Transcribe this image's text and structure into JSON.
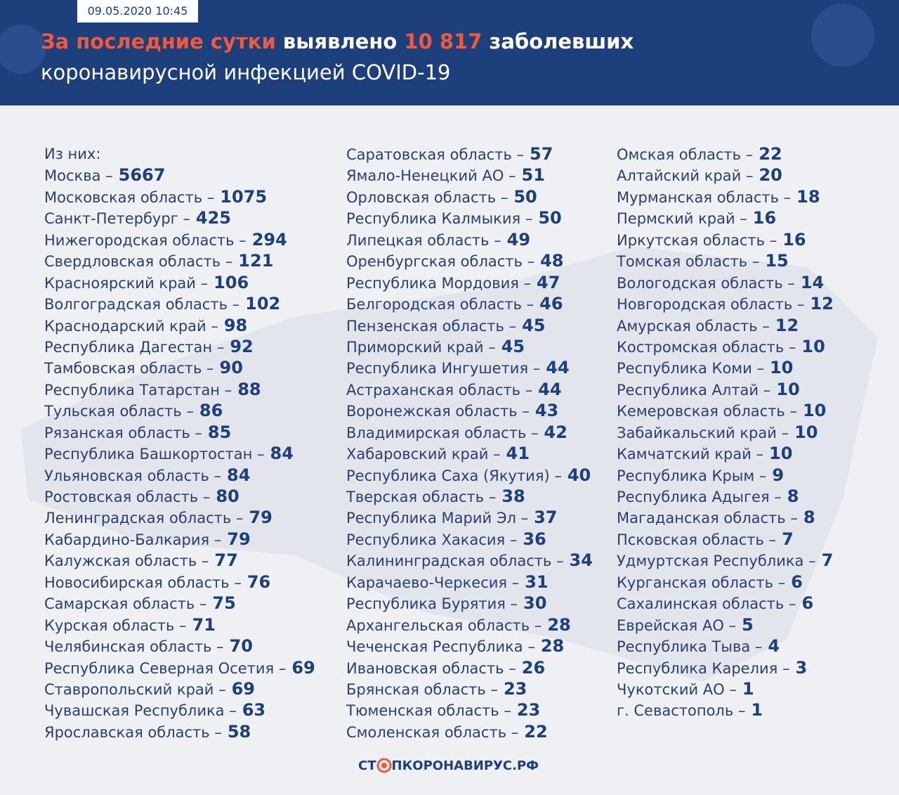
{
  "header": {
    "date": "09.05.2020 10:45",
    "title": {
      "highlight": "За последние сутки",
      "verb": "выявлено",
      "count": "10 817",
      "noun": "заболевших",
      "line2": "коронавирусной инфекцией COVID-19"
    }
  },
  "list_intro": "Из них:",
  "columns": [
    [
      {
        "name": "Москва –",
        "value": 5667
      },
      {
        "name": "Московская область –",
        "value": 1075
      },
      {
        "name": "Санкт-Петербург –",
        "value": 425
      },
      {
        "name": "Нижегородская область –",
        "value": 294
      },
      {
        "name": "Свердловская область –",
        "value": 121
      },
      {
        "name": "Красноярский край –",
        "value": 106
      },
      {
        "name": "Волгоградская область –",
        "value": 102
      },
      {
        "name": "Краснодарский край –",
        "value": 98
      },
      {
        "name": "Республика Дагестан –",
        "value": 92
      },
      {
        "name": "Тамбовская область –",
        "value": 90
      },
      {
        "name": "Республика Татарстан –",
        "value": 88
      },
      {
        "name": "Тульская область –",
        "value": 86
      },
      {
        "name": "Рязанская область –",
        "value": 85
      },
      {
        "name": "Республика Башкортостан –",
        "value": 84
      },
      {
        "name": "Ульяновская область –",
        "value": 84
      },
      {
        "name": "Ростовская область –",
        "value": 80
      },
      {
        "name": "Ленинградская область –",
        "value": 79
      },
      {
        "name": "Кабардино-Балкария –",
        "value": 79
      },
      {
        "name": "Калужская область –",
        "value": 77
      },
      {
        "name": "Новосибирская область –",
        "value": 76
      },
      {
        "name": "Самарская область –",
        "value": 75
      },
      {
        "name": "Курская область –",
        "value": 71
      },
      {
        "name": "Челябинская область –",
        "value": 70
      },
      {
        "name": "Республика Северная Осетия –",
        "value": 69
      },
      {
        "name": "Ставропольский край –",
        "value": 69
      },
      {
        "name": "Чувашская Республика –",
        "value": 63
      },
      {
        "name": "Ярославская область –",
        "value": 58
      }
    ],
    [
      {
        "name": "Саратовская область –",
        "value": 57
      },
      {
        "name": "Ямало-Ненецкий АО –",
        "value": 51
      },
      {
        "name": "Орловская область –",
        "value": 50
      },
      {
        "name": "Республика Калмыкия –",
        "value": 50
      },
      {
        "name": "Липецкая область –",
        "value": 49
      },
      {
        "name": "Оренбургская область –",
        "value": 48
      },
      {
        "name": "Республика Мордовия –",
        "value": 47
      },
      {
        "name": "Белгородская область –",
        "value": 46
      },
      {
        "name": "Пензенская область –",
        "value": 45
      },
      {
        "name": "Приморский край –",
        "value": 45
      },
      {
        "name": "Республика Ингушетия –",
        "value": 44
      },
      {
        "name": "Астраханская область –",
        "value": 44
      },
      {
        "name": "Воронежская область –",
        "value": 43
      },
      {
        "name": "Владимирская область –",
        "value": 42
      },
      {
        "name": "Хабаровский край –",
        "value": 41
      },
      {
        "name": "Республика Саха (Якутия) –",
        "value": 40
      },
      {
        "name": "Тверская область –",
        "value": 38
      },
      {
        "name": "Республика Марий Эл –",
        "value": 37
      },
      {
        "name": "Республика Хакасия –",
        "value": 36
      },
      {
        "name": "Калининградская область –",
        "value": 34
      },
      {
        "name": "Карачаево-Черкесия –",
        "value": 31
      },
      {
        "name": "Республика Бурятия –",
        "value": 30
      },
      {
        "name": "Архангельская область –",
        "value": 28
      },
      {
        "name": "Чеченская Республика –",
        "value": 28
      },
      {
        "name": "Ивановская область –",
        "value": 26
      },
      {
        "name": "Брянская область –",
        "value": 23
      },
      {
        "name": "Тюменская область –",
        "value": 23
      },
      {
        "name": "Смоленская область –",
        "value": 22
      }
    ],
    [
      {
        "name": "Омская область –",
        "value": 22
      },
      {
        "name": "Алтайский край –",
        "value": 20
      },
      {
        "name": "Мурманская область –",
        "value": 18
      },
      {
        "name": "Пермский край –",
        "value": 16
      },
      {
        "name": "Иркутская область –",
        "value": 16
      },
      {
        "name": "Томская область –",
        "value": 15
      },
      {
        "name": "Вологодская область –",
        "value": 14
      },
      {
        "name": "Новгородская область –",
        "value": 12
      },
      {
        "name": "Амурская область –",
        "value": 12
      },
      {
        "name": "Костромская область –",
        "value": 10
      },
      {
        "name": "Республика Коми –",
        "value": 10
      },
      {
        "name": "Республика Алтай –",
        "value": 10
      },
      {
        "name": "Кемеровская область –",
        "value": 10
      },
      {
        "name": "Забайкальский край –",
        "value": 10
      },
      {
        "name": "Камчатский край –",
        "value": 10
      },
      {
        "name": "Республика Крым –",
        "value": 9
      },
      {
        "name": "Республика Адыгея –",
        "value": 8
      },
      {
        "name": "Магаданская область –",
        "value": 8
      },
      {
        "name": "Псковская область –",
        "value": 7
      },
      {
        "name": "Удмуртская Республика –",
        "value": 7
      },
      {
        "name": "Курганская область –",
        "value": 6
      },
      {
        "name": "Сахалинская область –",
        "value": 6
      },
      {
        "name": "Еврейская АО –",
        "value": 5
      },
      {
        "name": "Республика Тыва –",
        "value": 4
      },
      {
        "name": "Республика Карелия –",
        "value": 3
      },
      {
        "name": "Чукотский АО –",
        "value": 1
      },
      {
        "name": "г. Севастополь –",
        "value": 1
      }
    ]
  ],
  "footer": {
    "logo_left": "СТ",
    "logo_right": "ПКОРОНАВИРУС.РФ"
  }
}
